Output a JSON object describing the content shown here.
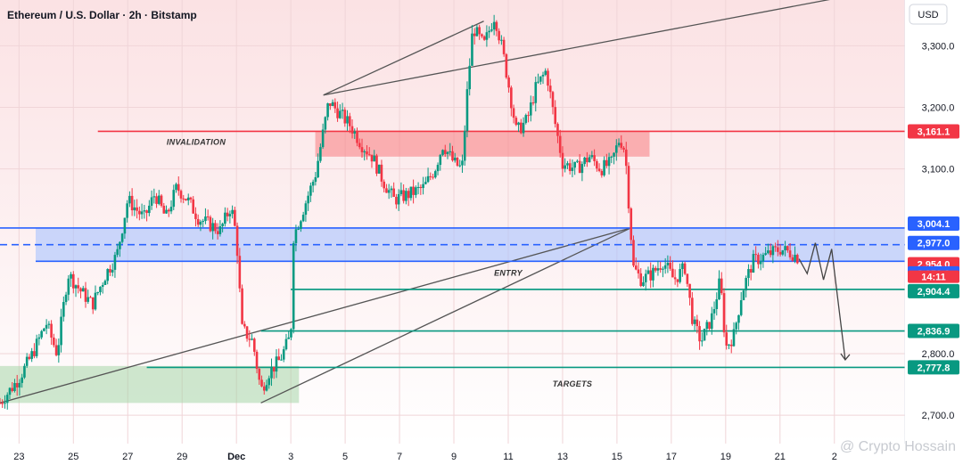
{
  "header": {
    "title": "Ethereum / U.S. Dollar · 2h · Bitstamp",
    "currency_button": "USD"
  },
  "watermark": "@ Crypto Hossain",
  "chart_data": {
    "type": "candlestick",
    "title": "Ethereum / U.S. Dollar · 2h · Bitstamp",
    "y_axis": {
      "unit": "USD",
      "ticks": [
        {
          "value": 3300,
          "label": "3,300.0"
        },
        {
          "value": 3200,
          "label": "3,200.0"
        },
        {
          "value": 3100,
          "label": "3,100.0"
        },
        {
          "value": 2800,
          "label": "2,800.0"
        },
        {
          "value": 2700,
          "label": "2,700.0"
        }
      ],
      "range": [
        2680,
        3340
      ]
    },
    "x_axis": {
      "ticks": [
        {
          "pos": 0.0,
          "label": "23"
        },
        {
          "pos": 2.0,
          "label": "25"
        },
        {
          "pos": 4.0,
          "label": "27"
        },
        {
          "pos": 6.0,
          "label": "29"
        },
        {
          "pos": 8.0,
          "label": "Dec"
        },
        {
          "pos": 10.0,
          "label": "3"
        },
        {
          "pos": 12.0,
          "label": "5"
        },
        {
          "pos": 14.0,
          "label": "7"
        },
        {
          "pos": 16.0,
          "label": "9"
        },
        {
          "pos": 18.0,
          "label": "11"
        },
        {
          "pos": 20.0,
          "label": "13"
        },
        {
          "pos": 22.0,
          "label": "15"
        },
        {
          "pos": 24.0,
          "label": "17"
        },
        {
          "pos": 26.0,
          "label": "19"
        },
        {
          "pos": 28.0,
          "label": "21"
        },
        {
          "pos": 30.0,
          "label": "2"
        }
      ],
      "range": [
        -0.7,
        32.6
      ]
    },
    "price_path": [
      [
        -0.7,
        2720
      ],
      [
        0.0,
        2760
      ],
      [
        0.5,
        2800
      ],
      [
        1.0,
        2850
      ],
      [
        1.4,
        2800
      ],
      [
        1.8,
        2930
      ],
      [
        2.3,
        2900
      ],
      [
        2.7,
        2880
      ],
      [
        3.2,
        2930
      ],
      [
        3.6,
        2960
      ],
      [
        4.0,
        3050
      ],
      [
        4.6,
        3020
      ],
      [
        5.0,
        3060
      ],
      [
        5.4,
        3020
      ],
      [
        5.8,
        3070
      ],
      [
        6.2,
        3050
      ],
      [
        6.6,
        3020
      ],
      [
        7.0,
        3010
      ],
      [
        7.4,
        3000
      ],
      [
        7.8,
        3040
      ],
      [
        8.0,
        2990
      ],
      [
        8.2,
        2840
      ],
      [
        8.6,
        2820
      ],
      [
        8.9,
        2740
      ],
      [
        9.2,
        2770
      ],
      [
        9.6,
        2790
      ],
      [
        10.0,
        2830
      ],
      [
        10.1,
        2990
      ],
      [
        10.5,
        3040
      ],
      [
        10.9,
        3090
      ],
      [
        11.4,
        3210
      ],
      [
        11.8,
        3190
      ],
      [
        12.2,
        3170
      ],
      [
        12.6,
        3140
      ],
      [
        13.0,
        3120
      ],
      [
        13.4,
        3080
      ],
      [
        13.8,
        3050
      ],
      [
        14.4,
        3060
      ],
      [
        14.9,
        3070
      ],
      [
        15.3,
        3100
      ],
      [
        15.6,
        3140
      ],
      [
        16.0,
        3110
      ],
      [
        16.3,
        3100
      ],
      [
        16.5,
        3230
      ],
      [
        16.7,
        3330
      ],
      [
        17.1,
        3300
      ],
      [
        17.5,
        3350
      ],
      [
        17.8,
        3290
      ],
      [
        18.0,
        3240
      ],
      [
        18.3,
        3160
      ],
      [
        18.7,
        3180
      ],
      [
        19.0,
        3230
      ],
      [
        19.4,
        3260
      ],
      [
        19.7,
        3180
      ],
      [
        20.0,
        3110
      ],
      [
        20.5,
        3100
      ],
      [
        21.0,
        3120
      ],
      [
        21.4,
        3100
      ],
      [
        21.8,
        3110
      ],
      [
        22.1,
        3150
      ],
      [
        22.3,
        3130
      ],
      [
        22.6,
        2940
      ],
      [
        22.9,
        2920
      ],
      [
        23.3,
        2930
      ],
      [
        23.7,
        2950
      ],
      [
        24.1,
        2920
      ],
      [
        24.5,
        2940
      ],
      [
        24.8,
        2850
      ],
      [
        25.1,
        2820
      ],
      [
        25.5,
        2860
      ],
      [
        25.8,
        2920
      ],
      [
        26.0,
        2810
      ],
      [
        26.3,
        2830
      ],
      [
        26.6,
        2900
      ],
      [
        27.0,
        2950
      ],
      [
        27.5,
        2960
      ],
      [
        28.0,
        2970
      ],
      [
        28.5,
        2962
      ],
      [
        28.7,
        2954
      ]
    ],
    "key_levels": [
      {
        "label": "INVALIDATION",
        "price": 3161.1,
        "badge": "3,161.1",
        "color": "#f23645",
        "x_start": 2.9
      },
      {
        "label": "",
        "price": 3004.1,
        "badge": "3,004.1",
        "color": "#2962ff",
        "x_start": -0.7
      },
      {
        "label": "",
        "price": 2977.0,
        "badge": "2,977.0",
        "color": "#2962ff",
        "x_start": -0.7
      },
      {
        "label": "",
        "price": 2954.0,
        "badge": "2,954.0",
        "color": "#f23645",
        "x_start": -0.7
      },
      {
        "label": "ENTRY",
        "price": 2950.0,
        "badge": "2,950.0",
        "color": "#2962ff",
        "x_start": -0.7
      },
      {
        "label": "",
        "price": 2904.4,
        "badge": "2,904.4",
        "color": "#089981",
        "x_start": 10.0
      },
      {
        "label": "",
        "price": 2836.9,
        "badge": "2,836.9",
        "color": "#089981",
        "x_start": 8.9
      },
      {
        "label": "TARGETS",
        "price": 2777.8,
        "badge": "2,777.8",
        "color": "#089981",
        "x_start": 4.7
      }
    ],
    "countdown": "14:11",
    "zones": {
      "invalidation_box": {
        "x": [
          10.9,
          23.2
        ],
        "y": [
          3120,
          3161
        ]
      },
      "entry_box": {
        "x": [
          -0.7,
          32.6
        ],
        "y": [
          2950,
          3004.1
        ]
      },
      "target_box": {
        "x": [
          -0.7,
          10.3
        ],
        "y": [
          2720,
          2780
        ]
      }
    },
    "trend_channel": {
      "upper": [
        [
          11.2,
          3220
        ],
        [
          31.6,
          3390
        ]
      ],
      "lower": [
        [
          -0.7,
          2720
        ],
        [
          22.5,
          3004
        ]
      ],
      "upper_left": [
        [
          11.2,
          3220
        ],
        [
          17.1,
          3340
        ]
      ],
      "lower_right": [
        [
          8.9,
          2720
        ],
        [
          22.5,
          3004
        ]
      ]
    },
    "projection": [
      [
        28.7,
        2954
      ],
      [
        29.0,
        2930
      ],
      [
        29.3,
        2980
      ],
      [
        29.6,
        2920
      ],
      [
        29.9,
        2970
      ],
      [
        30.4,
        2790
      ]
    ]
  }
}
